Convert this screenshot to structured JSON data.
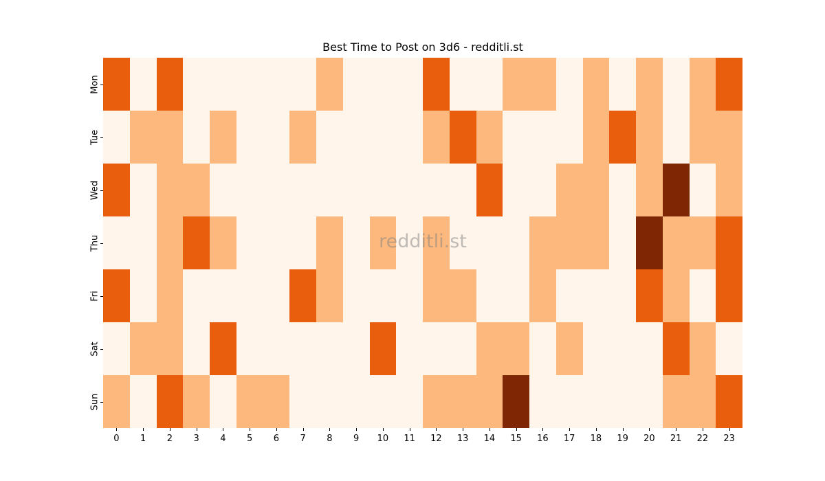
{
  "chart_data": {
    "type": "heatmap",
    "title": "Best Time to Post on 3d6 - redditli.st",
    "xlabel": "",
    "ylabel": "",
    "x": [
      "0",
      "1",
      "2",
      "3",
      "4",
      "5",
      "6",
      "7",
      "8",
      "9",
      "10",
      "11",
      "12",
      "13",
      "14",
      "15",
      "16",
      "17",
      "18",
      "19",
      "20",
      "21",
      "22",
      "23"
    ],
    "y": [
      "Mon",
      "Tue",
      "Wed",
      "Thu",
      "Fri",
      "Sat",
      "Sun"
    ],
    "values": [
      [
        2,
        0,
        2,
        0,
        0,
        0,
        0,
        0,
        1,
        0,
        0,
        0,
        2,
        0,
        0,
        1,
        1,
        0,
        1,
        0,
        1,
        0,
        1,
        2
      ],
      [
        0,
        1,
        1,
        0,
        1,
        0,
        0,
        1,
        0,
        0,
        0,
        0,
        1,
        2,
        1,
        0,
        0,
        0,
        1,
        2,
        1,
        0,
        1,
        1
      ],
      [
        2,
        0,
        1,
        1,
        0,
        0,
        0,
        0,
        0,
        0,
        0,
        0,
        0,
        0,
        2,
        0,
        0,
        1,
        1,
        0,
        1,
        3,
        0,
        1
      ],
      [
        0,
        0,
        1,
        2,
        1,
        0,
        0,
        0,
        1,
        0,
        1,
        0,
        1,
        0,
        0,
        0,
        1,
        1,
        1,
        0,
        3,
        1,
        1,
        2
      ],
      [
        2,
        0,
        1,
        0,
        0,
        0,
        0,
        2,
        1,
        0,
        0,
        0,
        1,
        1,
        0,
        0,
        1,
        0,
        0,
        0,
        2,
        1,
        0,
        2
      ],
      [
        0,
        1,
        1,
        0,
        2,
        0,
        0,
        0,
        0,
        0,
        2,
        0,
        0,
        0,
        1,
        1,
        0,
        1,
        0,
        0,
        0,
        2,
        1,
        0
      ],
      [
        1,
        0,
        2,
        1,
        0,
        1,
        1,
        0,
        0,
        0,
        0,
        0,
        1,
        1,
        1,
        3,
        0,
        0,
        0,
        0,
        0,
        1,
        1,
        2
      ]
    ],
    "colormap": "Oranges",
    "color_levels": [
      "#fff5eb",
      "#fdb97d",
      "#e95e0d",
      "#7f2704"
    ],
    "colorbar": false,
    "grid": false,
    "watermark": "redditli.st"
  }
}
